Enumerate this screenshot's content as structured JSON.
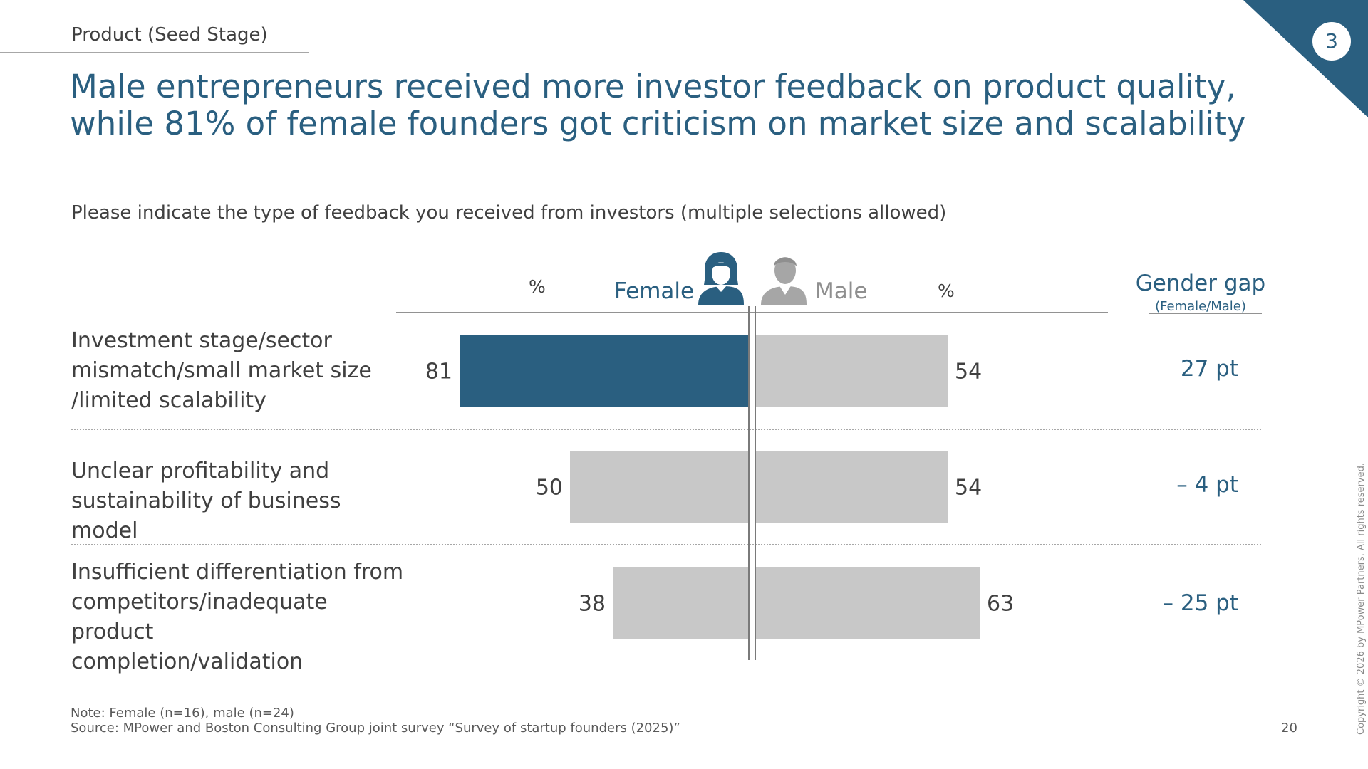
{
  "section_label": "Product (Seed Stage)",
  "headline": "Male entrepreneurs received more investor feedback on product quality, while 81% of female founders got criticism on market size and scalability",
  "question": "Please indicate the type of feedback you received from investors (multiple selections allowed)",
  "slide_number": "3",
  "page_number": "20",
  "colors": {
    "accent": "#2a5f80",
    "bar_grey": "#c8c8c8",
    "text": "#404040",
    "male_grey": "#8f8f8f"
  },
  "icons": {
    "female": "female-person-icon",
    "male": "male-person-icon"
  },
  "legend": {
    "female": "Female",
    "male": "Male",
    "percent_female": "%",
    "percent_male": "%"
  },
  "gap_header": {
    "title": "Gender gap",
    "subtitle": "(Female/Male)"
  },
  "chart_data": {
    "type": "bar",
    "orientation": "horizontal-butterfly",
    "categories": [
      "Investment stage/sector mismatch/small market size /limited scalability",
      "Unclear profitability and sustainability of business model",
      "Insufficient differentiation from competitors/inadequate product completion/validation"
    ],
    "series": [
      {
        "name": "Female",
        "values": [
          81,
          50,
          38
        ]
      },
      {
        "name": "Male",
        "values": [
          54,
          54,
          63
        ]
      }
    ],
    "highlight": {
      "series": "Female",
      "index": 0
    },
    "gender_gap": [
      "27 pt",
      "– 4 pt",
      "– 25 pt"
    ],
    "unit": "%",
    "xlim": [
      0,
      100
    ]
  },
  "rows": [
    {
      "label_lines": [
        "Investment stage/sector",
        "mismatch/small market size",
        "/limited scalability"
      ]
    },
    {
      "label_lines": [
        "Unclear profitability and",
        "sustainability of business model"
      ]
    },
    {
      "label_lines": [
        "Insufficient differentiation from",
        "competitors/inadequate product",
        "completion/validation"
      ]
    }
  ],
  "note": "Note: Female (n=16), male (n=24)",
  "source": "Source: MPower and Boston Consulting Group joint survey “Survey of startup founders (2025)”",
  "copyright": "Copyright © 2026 by MPower Partners. All rights reserved."
}
